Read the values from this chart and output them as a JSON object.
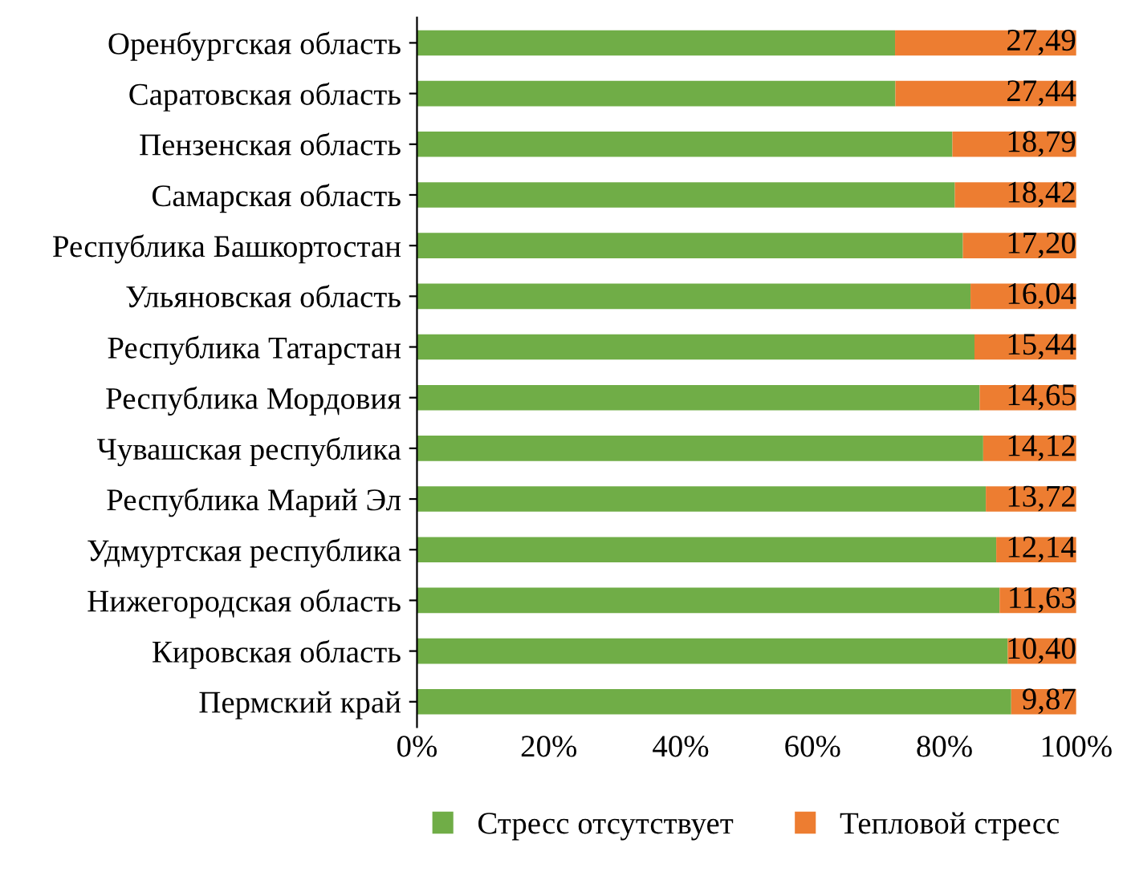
{
  "chart_data": {
    "type": "bar",
    "orientation": "horizontal",
    "stacked": true,
    "categories": [
      "Оренбургская область",
      "Саратовская область",
      "Пензенская область",
      "Самарская область",
      "Республика Башкортостан",
      "Ульяновская область",
      "Республика Татарстан",
      "Республика Мордовия",
      "Чувашская республика",
      "Республика Марий Эл",
      "Удмуртская республика",
      "Нижегородская область",
      "Кировская область",
      "Пермский край"
    ],
    "series": [
      {
        "name": "Стресс отсутствует",
        "color": "#70ad47",
        "values": [
          72.51,
          72.56,
          81.21,
          81.58,
          82.8,
          83.96,
          84.56,
          85.35,
          85.88,
          86.28,
          87.86,
          88.37,
          89.6,
          90.13
        ]
      },
      {
        "name": "Тепловой стресс",
        "color": "#ed7d31",
        "values": [
          27.49,
          27.44,
          18.79,
          18.42,
          17.2,
          16.04,
          15.44,
          14.65,
          14.12,
          13.72,
          12.14,
          11.63,
          10.4,
          9.87
        ],
        "value_labels": [
          "27,49",
          "27,44",
          "18,79",
          "18,42",
          "17,20",
          "16,04",
          "15,44",
          "14,65",
          "14,12",
          "13,72",
          "12,14",
          "11,63",
          "10,40",
          "9,87"
        ]
      }
    ],
    "xlim": [
      0,
      100
    ],
    "xticks": [
      {
        "value": 0,
        "label": "0%"
      },
      {
        "value": 20,
        "label": "20%"
      },
      {
        "value": 40,
        "label": "40%"
      },
      {
        "value": 60,
        "label": "60%"
      },
      {
        "value": 80,
        "label": "80%"
      },
      {
        "value": 100,
        "label": "100%"
      }
    ],
    "legend": "bottom"
  }
}
